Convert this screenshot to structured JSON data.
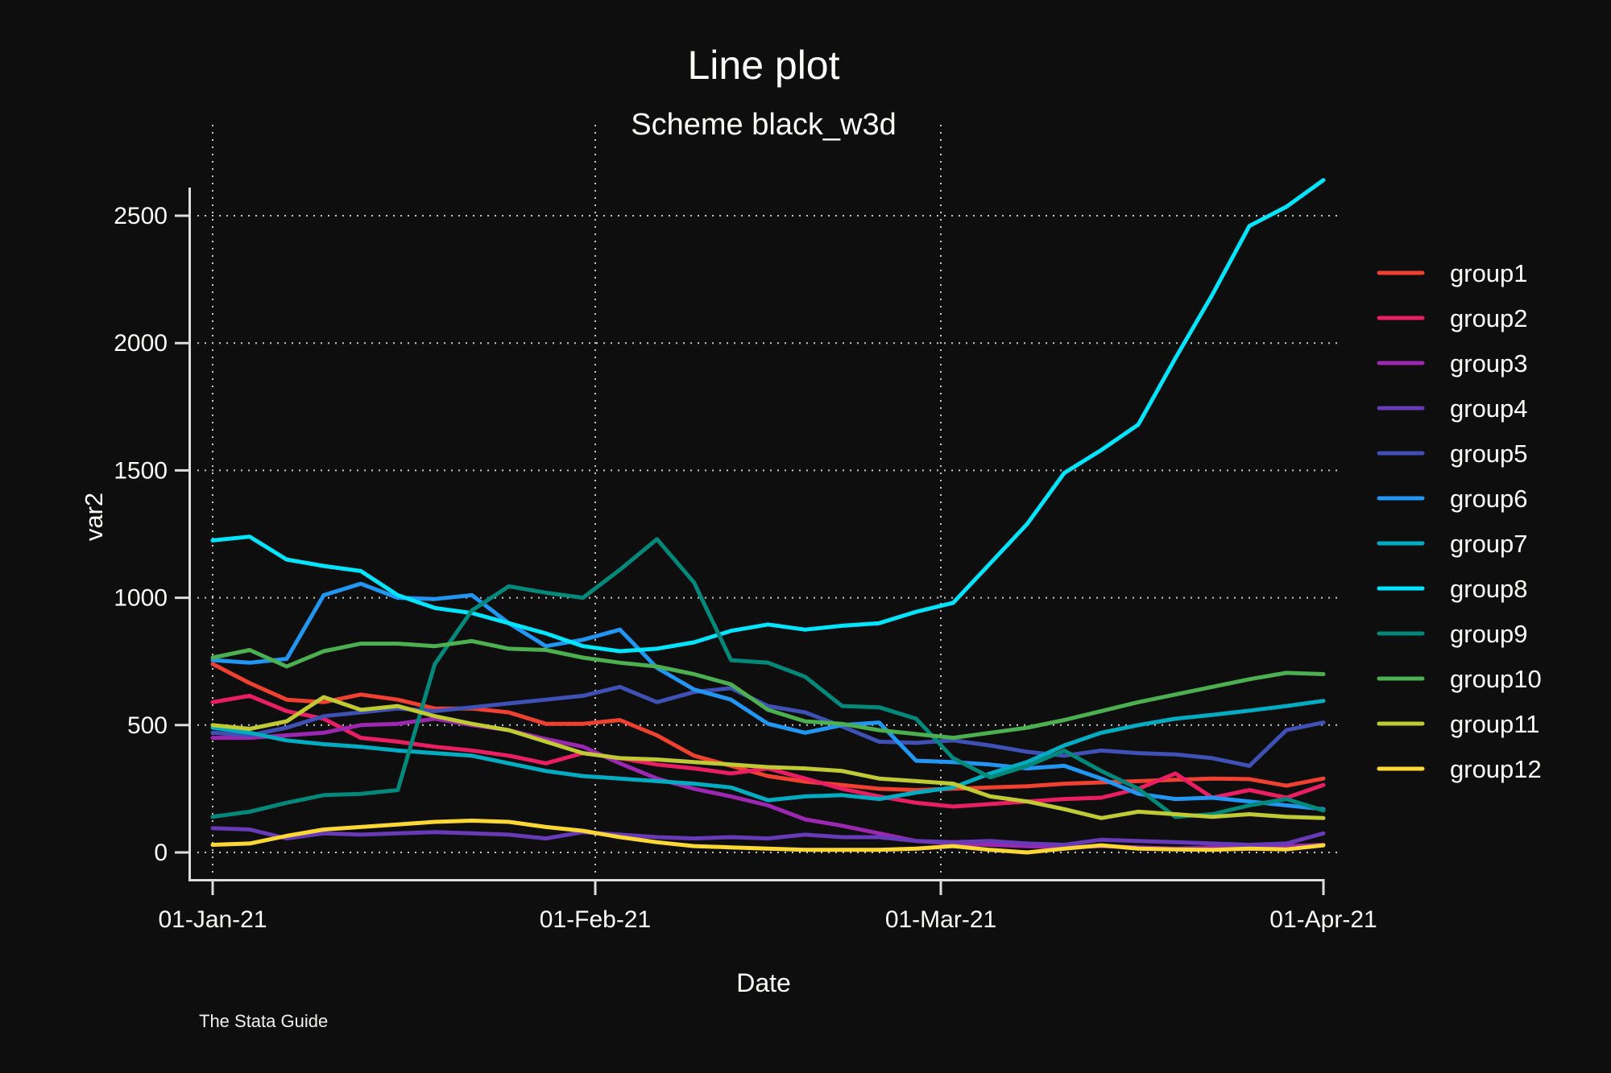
{
  "page": {
    "title": "Line plot",
    "subtitle": "Scheme black_w3d",
    "xlabel": "Date",
    "ylabel": "var2",
    "caption": "The Stata Guide"
  },
  "chart_data": {
    "type": "line",
    "title": "Line plot",
    "subtitle": "Scheme black_w3d",
    "xlabel": "Date",
    "ylabel": "var2",
    "grid": "dotted",
    "legend_position": "right",
    "background_color": "#0e0e0e",
    "axis_color": "#dedede",
    "gridline_color": "#c9c9c9",
    "x_unit": "days since 01-Jan-21",
    "x": [
      0,
      3,
      6,
      9,
      12,
      15,
      18,
      21,
      24,
      27,
      30,
      33,
      36,
      39,
      42,
      45,
      48,
      51,
      54,
      57,
      60,
      63,
      66,
      69,
      72,
      75,
      78,
      81,
      84,
      87,
      90
    ],
    "x_tick_days": [
      0,
      31,
      59,
      90
    ],
    "x_tick_labels": [
      "01-Jan-21",
      "01-Feb-21",
      "01-Mar-21",
      "01-Apr-21"
    ],
    "y_ticks": [
      0,
      500,
      1000,
      1500,
      2000,
      2500
    ],
    "ylim": [
      0,
      2700
    ],
    "series": [
      {
        "name": "group1",
        "color": "#f04130",
        "values": [
          740,
          665,
          600,
          590,
          620,
          600,
          565,
          565,
          550,
          505,
          505,
          520,
          460,
          380,
          340,
          300,
          278,
          265,
          250,
          245,
          250,
          255,
          260,
          270,
          275,
          280,
          285,
          290,
          288,
          262,
          290
        ]
      },
      {
        "name": "group2",
        "color": "#e91e63",
        "values": [
          590,
          615,
          555,
          525,
          450,
          435,
          415,
          400,
          380,
          350,
          390,
          370,
          345,
          330,
          310,
          330,
          290,
          250,
          220,
          195,
          180,
          190,
          200,
          210,
          215,
          250,
          310,
          215,
          245,
          215,
          265
        ]
      },
      {
        "name": "group3",
        "color": "#9c27b0",
        "values": [
          450,
          450,
          460,
          470,
          500,
          505,
          525,
          500,
          480,
          445,
          415,
          350,
          290,
          250,
          220,
          185,
          130,
          105,
          75,
          45,
          35,
          30,
          25,
          20,
          25,
          20,
          15,
          20,
          20,
          25,
          30
        ]
      },
      {
        "name": "group4",
        "color": "#673ab7",
        "values": [
          95,
          90,
          55,
          75,
          70,
          75,
          80,
          75,
          70,
          55,
          80,
          70,
          60,
          55,
          60,
          55,
          70,
          60,
          60,
          45,
          40,
          45,
          35,
          30,
          50,
          45,
          40,
          35,
          30,
          35,
          75
        ]
      },
      {
        "name": "group5",
        "color": "#3f51b5",
        "values": [
          470,
          460,
          490,
          535,
          550,
          565,
          555,
          570,
          585,
          600,
          615,
          650,
          590,
          630,
          645,
          575,
          550,
          495,
          435,
          430,
          440,
          420,
          395,
          380,
          400,
          390,
          385,
          370,
          340,
          480,
          510
        ]
      },
      {
        "name": "group6",
        "color": "#2196f3",
        "values": [
          755,
          745,
          760,
          1010,
          1055,
          1000,
          995,
          1010,
          900,
          810,
          835,
          875,
          725,
          640,
          600,
          505,
          470,
          500,
          510,
          360,
          355,
          345,
          330,
          340,
          290,
          230,
          210,
          215,
          200,
          185,
          170
        ]
      },
      {
        "name": "group7",
        "color": "#00acc1",
        "values": [
          490,
          470,
          440,
          425,
          415,
          400,
          390,
          380,
          350,
          320,
          300,
          290,
          280,
          270,
          255,
          205,
          220,
          225,
          210,
          235,
          255,
          310,
          355,
          420,
          470,
          500,
          525,
          540,
          557,
          575,
          595
        ]
      },
      {
        "name": "group8",
        "color": "#00e5ff",
        "values": [
          1225,
          1240,
          1150,
          1125,
          1105,
          1010,
          960,
          940,
          900,
          860,
          810,
          790,
          800,
          825,
          870,
          895,
          875,
          890,
          900,
          945,
          980,
          1135,
          1290,
          1490,
          1580,
          1680,
          1940,
          2190,
          2460,
          2535,
          2640
        ]
      },
      {
        "name": "group9",
        "color": "#00897b",
        "values": [
          140,
          160,
          195,
          225,
          230,
          245,
          740,
          950,
          1045,
          1020,
          1000,
          1110,
          1230,
          1060,
          755,
          745,
          690,
          575,
          570,
          525,
          370,
          295,
          340,
          400,
          320,
          250,
          140,
          150,
          185,
          210,
          165
        ]
      },
      {
        "name": "group10",
        "color": "#4caf50",
        "values": [
          765,
          795,
          730,
          790,
          820,
          820,
          810,
          830,
          800,
          795,
          765,
          745,
          730,
          700,
          660,
          560,
          515,
          505,
          480,
          465,
          450,
          470,
          490,
          520,
          555,
          590,
          620,
          650,
          680,
          705,
          700
        ]
      },
      {
        "name": "group11",
        "color": "#c0ca33",
        "values": [
          500,
          485,
          515,
          610,
          560,
          575,
          535,
          505,
          480,
          435,
          390,
          370,
          365,
          355,
          345,
          335,
          330,
          320,
          290,
          280,
          270,
          220,
          200,
          170,
          135,
          160,
          150,
          140,
          150,
          140,
          135
        ]
      },
      {
        "name": "group12",
        "color": "#fdd835",
        "values": [
          30,
          35,
          65,
          90,
          100,
          110,
          120,
          125,
          120,
          100,
          85,
          60,
          40,
          25,
          20,
          15,
          10,
          10,
          10,
          15,
          25,
          10,
          0,
          15,
          28,
          15,
          12,
          10,
          15,
          12,
          28
        ]
      }
    ]
  }
}
